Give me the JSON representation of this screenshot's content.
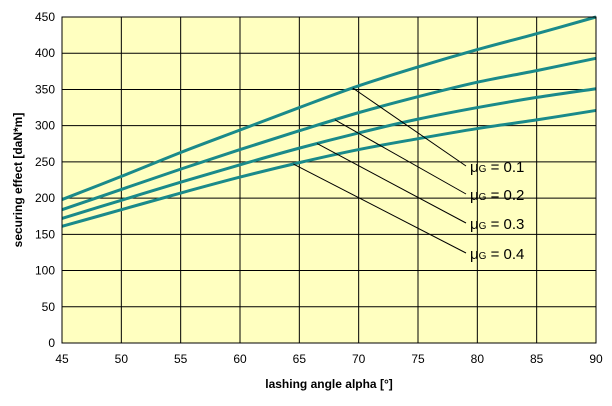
{
  "chart_data": {
    "type": "line",
    "title": "",
    "xlabel": "lashing angle alpha [°]",
    "ylabel": "securing effect [daN*m]",
    "xlim": [
      45,
      90
    ],
    "ylim": [
      0,
      450
    ],
    "x_ticks": [
      45,
      50,
      55,
      60,
      65,
      70,
      75,
      80,
      85,
      90
    ],
    "y_ticks": [
      0,
      50,
      100,
      150,
      200,
      250,
      300,
      350,
      400,
      450
    ],
    "grid": true,
    "legend": "none",
    "colors": {
      "line": "#1a8a8a",
      "plot_bg": "#ffffc0",
      "grid": "#000000"
    },
    "series": [
      {
        "label": {
          "prefix": "μ",
          "subscript": "G",
          "suffix": " = 0.1"
        },
        "x": [
          45,
          50,
          55,
          60,
          65,
          70,
          75,
          80,
          85,
          90
        ],
        "values": [
          198,
          230,
          263,
          294,
          325,
          355,
          381,
          405,
          427,
          450
        ]
      },
      {
        "label": {
          "prefix": "μ",
          "subscript": "G",
          "suffix": " = 0.2"
        },
        "x": [
          45,
          50,
          55,
          60,
          65,
          70,
          75,
          80,
          85,
          90
        ],
        "values": [
          184,
          212,
          240,
          267,
          293,
          318,
          340,
          360,
          376,
          393
        ]
      },
      {
        "label": {
          "prefix": "μ",
          "subscript": "G",
          "suffix": " = 0.3"
        },
        "x": [
          45,
          50,
          55,
          60,
          65,
          70,
          75,
          80,
          85,
          90
        ],
        "values": [
          172,
          197,
          222,
          246,
          269,
          290,
          309,
          325,
          339,
          351
        ]
      },
      {
        "label": {
          "prefix": "μ",
          "subscript": "G",
          "suffix": " = 0.4"
        },
        "x": [
          45,
          50,
          55,
          60,
          65,
          70,
          75,
          80,
          85,
          90
        ],
        "values": [
          161,
          184,
          207,
          229,
          249,
          267,
          282,
          296,
          308,
          321
        ]
      }
    ]
  }
}
